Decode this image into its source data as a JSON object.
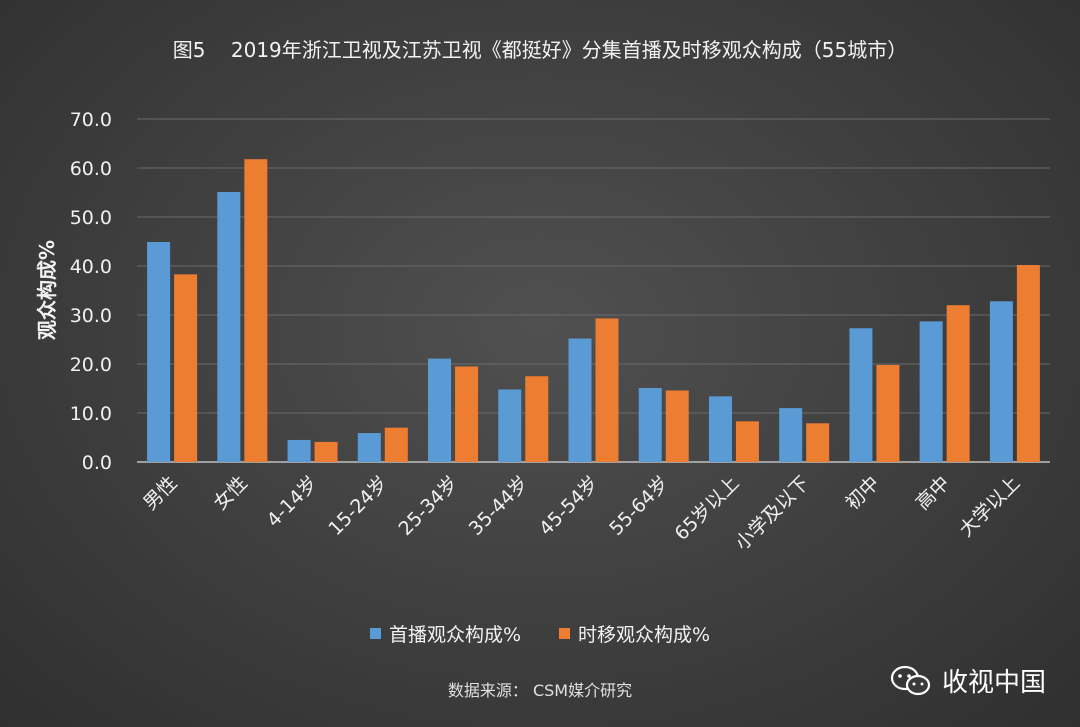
{
  "chart_data": {
    "type": "bar",
    "title": "图5    2019年浙江卫视及江苏卫视《都挺好》分集首播及时移观众构成（55城市）",
    "xlabel": "",
    "ylabel": "观众构成%",
    "ylim": [
      0,
      70
    ],
    "yticks": [
      "0.0",
      "10.0",
      "20.0",
      "30.0",
      "40.0",
      "50.0",
      "60.0",
      "70.0"
    ],
    "grid": true,
    "legend_position": "bottom",
    "categories": [
      "男性",
      "女性",
      "4-14岁",
      "15-24岁",
      "25-34岁",
      "35-44岁",
      "45-54岁",
      "55-64岁",
      "65岁以上",
      "小学及以下",
      "初中",
      "高中",
      "大学以上"
    ],
    "series": [
      {
        "name": "首播观众构成%",
        "color": "#5b9bd5",
        "values": [
          44.9,
          55.1,
          4.5,
          5.9,
          21.1,
          14.8,
          25.2,
          15.1,
          13.4,
          11.0,
          27.3,
          28.7,
          32.8
        ]
      },
      {
        "name": "时移观众构成%",
        "color": "#ed7d31",
        "values": [
          38.3,
          61.8,
          4.1,
          7.0,
          19.5,
          17.5,
          29.3,
          14.6,
          8.3,
          7.9,
          19.8,
          32.0,
          40.2
        ]
      }
    ]
  },
  "footer": {
    "source": "数据来源：  CSM媒介研究",
    "brand": "收视中国"
  },
  "icons": {
    "brand_icon": "wechat-icon"
  }
}
